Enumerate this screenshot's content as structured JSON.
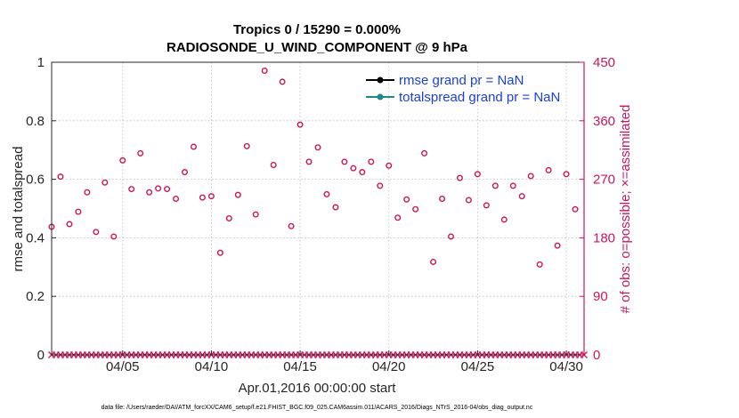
{
  "chart_data": {
    "type": "scatter",
    "title": "Tropics 0 / 15290 = 0.000%",
    "subtitle": "RADIOSONDE_U_WIND_COMPONENT @ 9 hPa",
    "xlabel": "Apr.01,2016 00:00:00 start",
    "ylabel_left": "rmse and totalspread",
    "ylabel_right": "# of obs: o=possible; ×=assimilated",
    "footer": "data file: /Users/raeder/DAI/ATM_forcXX/CAM6_setup/f.e21.FHIST_BGC.f09_025.CAM6assim.011/ACARS_2016/Diags_NTrS_2016-04/obs_diag_output.nc",
    "xlim": [
      1,
      31
    ],
    "ylim_left": [
      0,
      1
    ],
    "ylim_right": [
      0,
      450
    ],
    "x_ticks": [
      5,
      10,
      15,
      20,
      25,
      30
    ],
    "x_tick_labels": [
      "04/05",
      "04/10",
      "04/15",
      "04/20",
      "04/25",
      "04/30"
    ],
    "y_left_ticks": [
      "0",
      "0.2",
      "0.4",
      "0.6",
      "0.8",
      "1"
    ],
    "y_left_tick_values": [
      0,
      0.2,
      0.4,
      0.6,
      0.8,
      1
    ],
    "y_right_ticks": [
      "0",
      "90",
      "180",
      "270",
      "360",
      "450"
    ],
    "y_right_tick_values": [
      0,
      90,
      180,
      270,
      360,
      450
    ],
    "grid": true,
    "legend_position": "top-right",
    "legend": [
      {
        "label": "rmse grand pr = NaN",
        "color": "#000000"
      },
      {
        "label": "totalspread grand pr = NaN",
        "color": "#1a8a8a"
      }
    ],
    "series": [
      {
        "name": "obs possible",
        "axis": "right",
        "marker": "o",
        "color": "#d0145a",
        "x": [
          1.0,
          1.5,
          2.0,
          2.5,
          3.0,
          3.5,
          4.0,
          4.5,
          5.0,
          5.5,
          6.0,
          6.5,
          7.0,
          7.5,
          8.0,
          8.5,
          9.0,
          9.5,
          10.0,
          10.5,
          11.0,
          11.5,
          12.0,
          12.5,
          13.0,
          13.5,
          14.0,
          14.5,
          15.0,
          15.5,
          16.0,
          16.5,
          17.0,
          17.5,
          18.0,
          18.5,
          19.0,
          19.5,
          20.0,
          20.5,
          21.0,
          21.5,
          22.0,
          22.5,
          23.0,
          23.5,
          24.0,
          24.5,
          25.0,
          25.5,
          26.0,
          26.5,
          27.0,
          27.5,
          28.0,
          28.5,
          29.0,
          29.5,
          30.0,
          30.5
        ],
        "y": [
          197,
          274,
          201,
          220,
          250,
          189,
          265,
          182,
          299,
          255,
          310,
          250,
          256,
          255,
          240,
          281,
          320,
          242,
          244,
          157,
          210,
          246,
          321,
          216,
          437,
          292,
          420,
          198,
          354,
          297,
          319,
          247,
          227,
          297,
          287,
          281,
          297,
          260,
          291,
          211,
          239,
          224,
          310,
          143,
          240,
          182,
          272,
          238,
          278,
          230,
          260,
          208,
          260,
          244,
          275,
          139,
          284,
          168,
          278,
          224
        ]
      },
      {
        "name": "obs assimilated",
        "axis": "right",
        "marker": "x",
        "color": "#d0145a",
        "x_start": 1.0,
        "x_end": 31.0,
        "x_step": 0.25,
        "value": 0
      }
    ]
  }
}
